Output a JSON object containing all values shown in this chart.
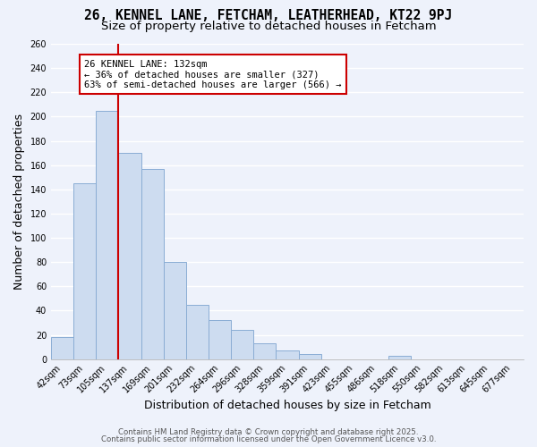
{
  "title_line1": "26, KENNEL LANE, FETCHAM, LEATHERHEAD, KT22 9PJ",
  "title_line2": "Size of property relative to detached houses in Fetcham",
  "xlabel": "Distribution of detached houses by size in Fetcham",
  "ylabel": "Number of detached properties",
  "bar_labels": [
    "42sqm",
    "73sqm",
    "105sqm",
    "137sqm",
    "169sqm",
    "201sqm",
    "232sqm",
    "264sqm",
    "296sqm",
    "328sqm",
    "359sqm",
    "391sqm",
    "423sqm",
    "455sqm",
    "486sqm",
    "518sqm",
    "550sqm",
    "582sqm",
    "613sqm",
    "645sqm",
    "677sqm"
  ],
  "bar_heights": [
    18,
    145,
    205,
    170,
    157,
    80,
    45,
    32,
    24,
    13,
    7,
    4,
    0,
    0,
    0,
    3,
    0,
    0,
    0,
    0,
    0
  ],
  "bar_color": "#cddcf0",
  "bar_edge_color": "#8aadd4",
  "vline_color": "#cc0000",
  "ylim": [
    0,
    260
  ],
  "yticks": [
    0,
    20,
    40,
    60,
    80,
    100,
    120,
    140,
    160,
    180,
    200,
    220,
    240,
    260
  ],
  "annotation_title": "26 KENNEL LANE: 132sqm",
  "annotation_line1": "← 36% of detached houses are smaller (327)",
  "annotation_line2": "63% of semi-detached houses are larger (566) →",
  "annotation_box_color": "#ffffff",
  "annotation_border_color": "#cc0000",
  "footer_line1": "Contains HM Land Registry data © Crown copyright and database right 2025.",
  "footer_line2": "Contains public sector information licensed under the Open Government Licence v3.0.",
  "bg_color": "#eef2fb",
  "grid_color": "#ffffff",
  "title_fontsize": 10.5,
  "subtitle_fontsize": 9.5,
  "axis_label_fontsize": 9,
  "tick_fontsize": 7,
  "annotation_fontsize": 7.5,
  "footer_fontsize": 6.2
}
